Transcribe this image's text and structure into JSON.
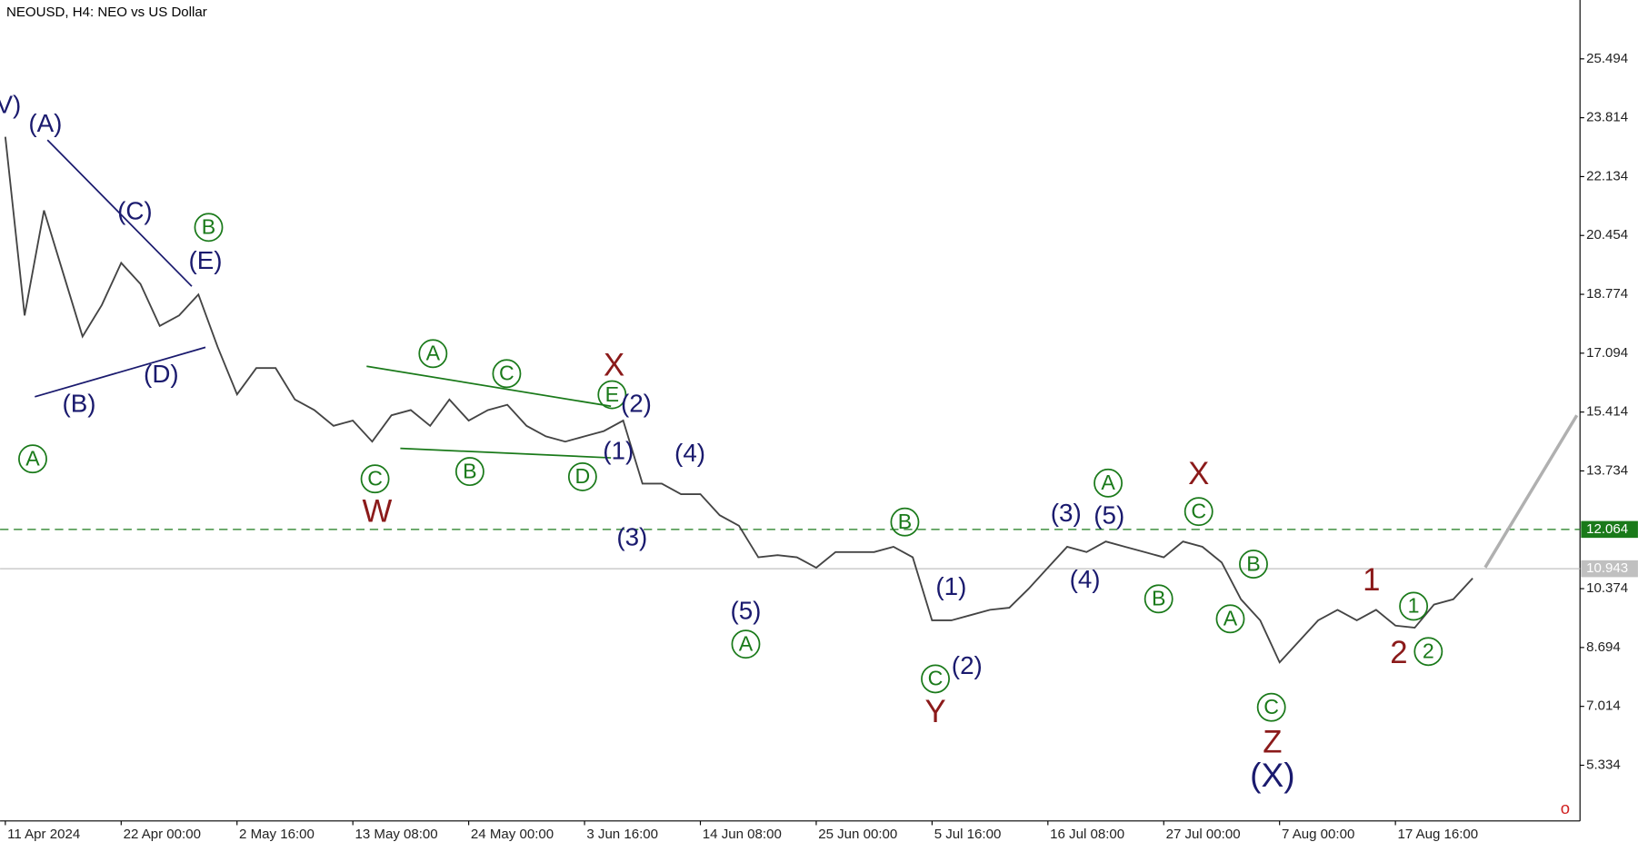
{
  "chart_data": {
    "type": "line",
    "title": "NEOUSD, H4:  NEO vs US Dollar",
    "categories": [
      "11 Apr 2024",
      null,
      null,
      null,
      null,
      null,
      "22 Apr 00:00",
      null,
      null,
      null,
      null,
      null,
      "2 May 16:00",
      null,
      null,
      null,
      null,
      null,
      "13 May 08:00",
      null,
      null,
      null,
      null,
      null,
      "24 May 00:00",
      null,
      null,
      null,
      null,
      null,
      "3 Jun 16:00",
      null,
      null,
      null,
      null,
      null,
      "14 Jun 08:00",
      null,
      null,
      null,
      null,
      null,
      "25 Jun 00:00",
      null,
      null,
      null,
      null,
      null,
      "5 Jul 16:00",
      null,
      null,
      null,
      null,
      null,
      "16 Jul 08:00",
      null,
      null,
      null,
      null,
      null,
      "27 Jul 00:00",
      null,
      null,
      null,
      null,
      null,
      "7 Aug 00:00",
      null,
      null,
      null,
      null,
      null,
      "17 Aug 16:00",
      null,
      null,
      null,
      null
    ],
    "values": [
      23.27,
      18.17,
      21.17,
      19.37,
      17.57,
      18.47,
      19.67,
      19.07,
      17.87,
      18.17,
      18.77,
      17.27,
      15.92,
      16.67,
      16.67,
      15.77,
      15.47,
      15.02,
      15.17,
      14.57,
      15.32,
      15.47,
      15.02,
      15.77,
      15.17,
      15.47,
      15.62,
      15.02,
      14.72,
      14.57,
      14.72,
      14.87,
      15.17,
      13.37,
      13.37,
      13.07,
      13.07,
      12.47,
      12.17,
      11.27,
      11.33,
      11.27,
      10.97,
      11.42,
      11.42,
      11.42,
      11.57,
      11.27,
      9.47,
      9.47,
      9.62,
      9.77,
      9.83,
      10.37,
      10.97,
      11.57,
      11.42,
      11.72,
      11.57,
      11.42,
      11.27,
      11.72,
      11.57,
      11.12,
      10.07,
      9.47,
      8.27,
      8.87,
      9.47,
      9.77,
      9.47,
      9.77,
      9.32,
      9.26,
      9.92,
      10.07,
      10.67
    ],
    "color": "#444444",
    "forecast": {
      "values": [
        10.98,
        15.32
      ],
      "color": "#b0b0b0"
    },
    "ylim": [
      3.744,
      27.174
    ],
    "yticks": [
      25.494,
      23.814,
      22.134,
      20.454,
      18.774,
      17.094,
      15.414,
      13.734,
      10.374,
      8.694,
      7.014,
      5.334
    ],
    "levels": [
      {
        "value": 12.064,
        "color": "#1a7a1a",
        "dashed": true
      },
      {
        "value": 10.943,
        "color": "#c0c0c0",
        "dashed": false
      }
    ],
    "annotations": [
      "V)",
      "(A)",
      "A",
      "(B)",
      "(C)",
      "(D)",
      "(E)",
      "B",
      "C",
      "W",
      "A",
      "B",
      "C",
      "D",
      "E",
      "X",
      "(2)",
      "(1)",
      "(3)",
      "(4)",
      "(5)",
      "A",
      "B",
      "(1)",
      "C",
      "(2)",
      "Y",
      "(3)",
      "(5)",
      "A",
      "(4)",
      "B",
      "X",
      "C",
      "B",
      "A",
      "C",
      "Z",
      "(X)",
      "1",
      "2",
      "1",
      "2"
    ]
  }
}
